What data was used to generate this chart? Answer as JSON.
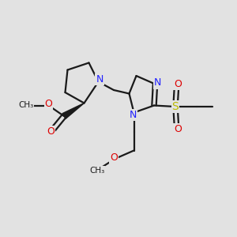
{
  "bg_color": "#e2e2e2",
  "bond_color": "#1a1a1a",
  "N_color": "#2020ff",
  "O_color": "#dd0000",
  "S_color": "#bbbb00",
  "C_color": "#1a1a1a",
  "line_width": 1.6,
  "fig_size": [
    3.0,
    3.0
  ],
  "dpi": 100,
  "xlim": [
    0,
    10
  ],
  "ylim": [
    0,
    10
  ]
}
